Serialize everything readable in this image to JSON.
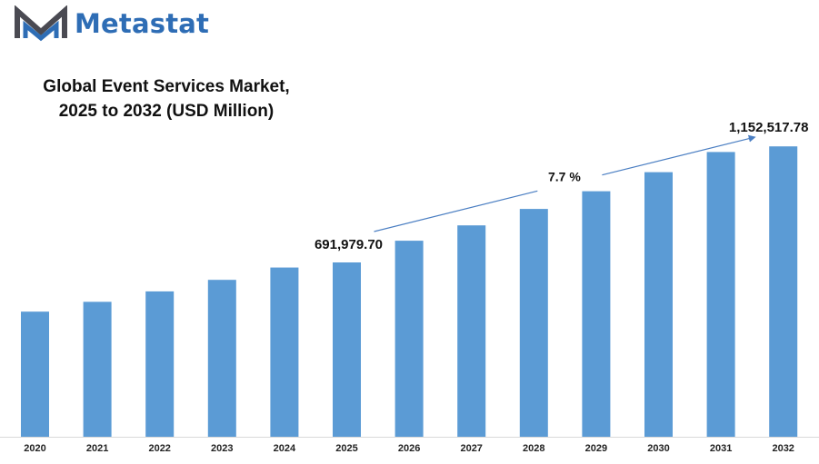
{
  "brand": {
    "name": "Metastat",
    "logo_icon": "metastat-m-logo",
    "color": "#2e6db5"
  },
  "chart_data": {
    "type": "bar",
    "title_line1": "Global Event Services Market,",
    "title_line2": "2025 to 2032 (USD Million)",
    "categories": [
      "2020",
      "2021",
      "2022",
      "2023",
      "2024",
      "2025",
      "2026",
      "2027",
      "2028",
      "2029",
      "2030",
      "2031",
      "2032"
    ],
    "values": [
      496500,
      535500,
      577000,
      622500,
      671500,
      691979.7,
      778000,
      839000,
      904000,
      974500,
      1050000,
      1130000,
      1152517.78
    ],
    "ylim": [
      0,
      1272000
    ],
    "bar_color": "#5b9bd5",
    "grid": false,
    "legend": "none",
    "annotations": {
      "start_label": "691,979.70",
      "start_index": 5,
      "end_label": "1,152,517.78",
      "end_index": 12,
      "cagr_label": "7.7  %"
    }
  }
}
